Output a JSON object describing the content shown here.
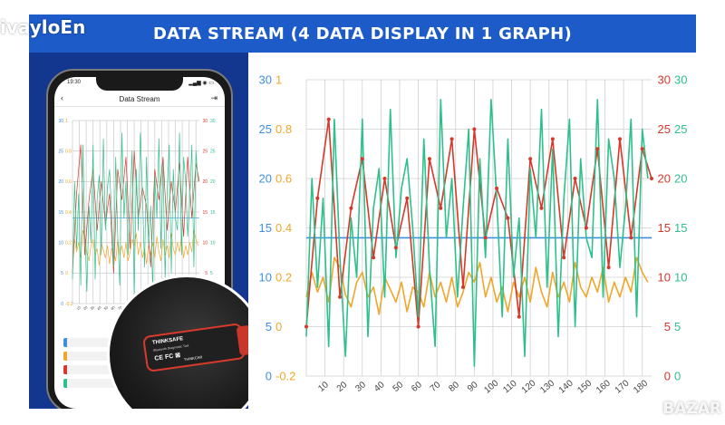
{
  "watermarks": {
    "top_left": "ivayloEn",
    "bottom_right": "BAZAR"
  },
  "title": "DATA STREAM (4 DATA DISPLAY IN 1 GRAPH)",
  "colors": {
    "title_bg": "#1c5bc8",
    "left_panel_bg": "#13368f",
    "blue": "#3f8fe0",
    "orange": "#f0a62a",
    "red": "#d8372a",
    "green": "#2ec08a"
  },
  "phone": {
    "status_time": "19:30",
    "status_right": "▂▄▆ ◉ ▭",
    "back_icon": "chevron-left-icon",
    "title": "Data Stream",
    "share_icon": "export-icon"
  },
  "device": {
    "logo": "THINKSAFE",
    "subtitle": "Bluetooth Diagnostic Tool",
    "ce": "CE FC ⊠",
    "brand": "THINKCAR"
  },
  "chart_data": {
    "type": "line",
    "x_range": [
      0,
      185
    ],
    "x_ticks": [
      10,
      20,
      30,
      40,
      50,
      60,
      70,
      80,
      90,
      100,
      110,
      120,
      130,
      140,
      150,
      160,
      170,
      180
    ],
    "grid": true,
    "axes": {
      "left_blue": {
        "ticks": [
          0,
          5,
          10,
          15,
          20,
          25,
          30
        ],
        "range": [
          0,
          30
        ]
      },
      "left_orange": {
        "ticks": [
          -0.2,
          0,
          0.2,
          0.4,
          0.6,
          0.8,
          1
        ],
        "range": [
          -0.2,
          1
        ]
      },
      "right_red": {
        "ticks": [
          0,
          5,
          10,
          15,
          20,
          25,
          30
        ],
        "range": [
          0,
          30
        ]
      },
      "right_green": {
        "ticks": [
          0,
          5,
          10,
          15,
          20,
          25,
          30
        ],
        "range": [
          0,
          30
        ]
      }
    },
    "series": [
      {
        "axis": "left_blue",
        "x": [
          0,
          185
        ],
        "values": [
          14,
          14
        ]
      },
      {
        "axis": "left_orange",
        "x": [
          0,
          3,
          6,
          9,
          12,
          15,
          18,
          21,
          24,
          27,
          30,
          33,
          36,
          39,
          42,
          45,
          48,
          51,
          54,
          57,
          60,
          63,
          66,
          69,
          72,
          75,
          78,
          81,
          84,
          87,
          90,
          93,
          96,
          99,
          102,
          105,
          108,
          111,
          114,
          117,
          120,
          123,
          126,
          129,
          132,
          135,
          138,
          141,
          144,
          147,
          150,
          153,
          156,
          159,
          162,
          165,
          168,
          171,
          174,
          177,
          180,
          183
        ],
        "values": [
          0.12,
          0.22,
          0.14,
          0.2,
          0.1,
          0.28,
          0.24,
          0.13,
          0.08,
          0.18,
          0.22,
          0.12,
          0.16,
          0.05,
          0.2,
          0.15,
          0.1,
          0.18,
          0.06,
          0.16,
          0.14,
          0.08,
          0.22,
          0.12,
          0.18,
          0.1,
          0.2,
          0.08,
          0.14,
          0.22,
          0.18,
          0.26,
          0.12,
          0.2,
          0.1,
          0.16,
          0.06,
          0.18,
          0.12,
          0.2,
          0.1,
          0.24,
          0.14,
          0.08,
          0.22,
          0.12,
          0.18,
          0.1,
          0.26,
          0.16,
          0.12,
          0.2,
          0.14,
          0.24,
          0.1,
          0.18,
          0.12,
          0.2,
          0.14,
          0.28,
          0.22,
          0.18
        ]
      },
      {
        "axis": "right_red",
        "x": [
          0,
          6,
          12,
          18,
          24,
          30,
          36,
          42,
          48,
          54,
          60,
          66,
          72,
          78,
          84,
          90,
          96,
          102,
          108,
          114,
          120,
          126,
          132,
          138,
          144,
          150,
          156,
          162,
          168,
          174,
          180,
          185
        ],
        "values": [
          5,
          18,
          26,
          8,
          17,
          22,
          12,
          20,
          13,
          18,
          5,
          22,
          17,
          24,
          9,
          25,
          14,
          19,
          16,
          6,
          22,
          17,
          24,
          12,
          20,
          15,
          23,
          11,
          24,
          14,
          23,
          20
        ]
      },
      {
        "axis": "right_green",
        "x": [
          0,
          3,
          6,
          9,
          12,
          15,
          18,
          21,
          24,
          27,
          30,
          33,
          36,
          39,
          42,
          45,
          48,
          51,
          54,
          57,
          60,
          63,
          66,
          69,
          72,
          75,
          78,
          81,
          84,
          87,
          90,
          93,
          96,
          99,
          102,
          105,
          108,
          111,
          114,
          117,
          120,
          123,
          126,
          129,
          132,
          135,
          138,
          141,
          144,
          147,
          150,
          153,
          156,
          159,
          162,
          165,
          168,
          171,
          174,
          177,
          180,
          183
        ],
        "values": [
          4,
          20,
          9,
          18,
          3,
          26,
          12,
          2,
          16,
          10,
          26,
          4,
          17,
          21,
          8,
          27,
          12,
          19,
          22,
          15,
          6,
          24,
          11,
          3,
          28,
          14,
          20,
          8,
          17,
          25,
          1,
          22,
          12,
          28,
          18,
          6,
          24,
          10,
          16,
          2,
          21,
          14,
          27,
          9,
          23,
          4,
          18,
          26,
          5,
          22,
          14,
          12,
          28,
          8,
          24,
          20,
          11,
          17,
          26,
          6,
          25,
          20
        ]
      }
    ]
  }
}
